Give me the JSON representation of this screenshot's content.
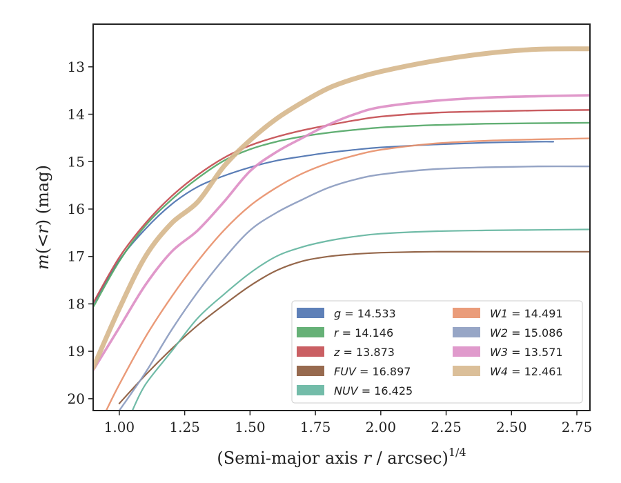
{
  "chart_data": {
    "type": "line",
    "xlabel": "(Semi-major axis r / arcsec)^1/4",
    "xlabel_parts": {
      "pre": "(Semi-major axis ",
      "var": "r",
      "post": " / arcsec)",
      "sup": "1/4"
    },
    "ylabel": "m(<r) (mag)",
    "ylabel_parts": {
      "pre": "m(",
      "var": "<r",
      "post": ") (mag)"
    },
    "xlim": [
      0.9,
      2.8
    ],
    "ylim": [
      20.25,
      12.1
    ],
    "y_inverted": true,
    "x_ticks": [
      "1.00",
      "1.25",
      "1.50",
      "1.75",
      "2.00",
      "2.25",
      "2.50",
      "2.75"
    ],
    "y_ticks": [
      "13",
      "14",
      "15",
      "16",
      "17",
      "18",
      "19",
      "20"
    ],
    "grid": false,
    "legend_position": "lower-right",
    "legend_columns": 2,
    "series": [
      {
        "name": "g = 14.533",
        "label_var": "g",
        "label_val": "14.533",
        "color": "#4c72b0",
        "width": 2.2,
        "x": [
          0.9,
          1.0,
          1.1,
          1.2,
          1.3,
          1.4,
          1.5,
          1.6,
          1.7,
          1.8,
          1.9,
          2.0,
          2.2,
          2.4,
          2.6,
          2.66
        ],
        "y": [
          18.0,
          17.08,
          16.42,
          15.9,
          15.53,
          15.3,
          15.12,
          14.98,
          14.89,
          14.81,
          14.75,
          14.7,
          14.64,
          14.6,
          14.58,
          14.58
        ]
      },
      {
        "name": "r = 14.146",
        "label_var": "r",
        "label_val": "14.146",
        "color": "#55a868",
        "width": 2.4,
        "x": [
          0.9,
          1.0,
          1.1,
          1.2,
          1.3,
          1.4,
          1.5,
          1.6,
          1.7,
          1.8,
          1.9,
          2.0,
          2.2,
          2.4,
          2.6,
          2.8
        ],
        "y": [
          18.07,
          17.1,
          16.35,
          15.8,
          15.35,
          14.98,
          14.74,
          14.58,
          14.47,
          14.39,
          14.33,
          14.28,
          14.23,
          14.2,
          14.19,
          14.18
        ]
      },
      {
        "name": "z = 13.873",
        "label_var": "z",
        "label_val": "13.873",
        "color": "#c44e52",
        "width": 2.4,
        "x": [
          0.9,
          1.0,
          1.1,
          1.2,
          1.3,
          1.4,
          1.5,
          1.6,
          1.7,
          1.8,
          1.9,
          2.0,
          2.2,
          2.4,
          2.6,
          2.8
        ],
        "y": [
          17.98,
          17.02,
          16.3,
          15.73,
          15.28,
          14.92,
          14.66,
          14.48,
          14.34,
          14.23,
          14.13,
          14.05,
          13.97,
          13.94,
          13.92,
          13.91
        ]
      },
      {
        "name": "FUV = 16.897",
        "label_var": "FUV",
        "label_val": "16.897",
        "color": "#8c5a3c",
        "width": 2.2,
        "x": [
          1.0,
          1.1,
          1.2,
          1.3,
          1.4,
          1.5,
          1.6,
          1.7,
          1.8,
          1.9,
          2.0,
          2.2,
          2.4,
          2.6,
          2.8
        ],
        "y": [
          20.1,
          19.5,
          18.95,
          18.45,
          18.02,
          17.62,
          17.3,
          17.1,
          17.0,
          16.95,
          16.92,
          16.9,
          16.9,
          16.9,
          16.9
        ]
      },
      {
        "name": "NUV = 16.425",
        "label_var": "NUV",
        "label_val": "16.425",
        "color": "#64b5a0",
        "width": 2.2,
        "x": [
          1.05,
          1.1,
          1.2,
          1.3,
          1.4,
          1.5,
          1.6,
          1.7,
          1.8,
          1.9,
          2.0,
          2.2,
          2.4,
          2.6,
          2.8
        ],
        "y": [
          20.25,
          19.7,
          19.0,
          18.3,
          17.8,
          17.35,
          17.0,
          16.8,
          16.67,
          16.58,
          16.52,
          16.47,
          16.45,
          16.44,
          16.43
        ]
      },
      {
        "name": "W1 = 14.491",
        "label_var": "W1",
        "label_val": "14.491",
        "color": "#e8916c",
        "width": 2.4,
        "x": [
          0.95,
          1.0,
          1.1,
          1.2,
          1.3,
          1.4,
          1.5,
          1.6,
          1.7,
          1.8,
          1.9,
          2.0,
          2.2,
          2.4,
          2.6,
          2.8
        ],
        "y": [
          20.25,
          19.7,
          18.7,
          17.85,
          17.1,
          16.45,
          15.93,
          15.55,
          15.25,
          15.03,
          14.87,
          14.75,
          14.62,
          14.56,
          14.53,
          14.51
        ]
      },
      {
        "name": "W2 = 15.086",
        "label_var": "W2",
        "label_val": "15.086",
        "color": "#8c9cc0",
        "width": 2.4,
        "x": [
          1.0,
          1.1,
          1.2,
          1.3,
          1.4,
          1.5,
          1.6,
          1.7,
          1.8,
          1.9,
          2.0,
          2.2,
          2.4,
          2.6,
          2.8
        ],
        "y": [
          20.25,
          19.45,
          18.55,
          17.75,
          17.05,
          16.45,
          16.08,
          15.8,
          15.55,
          15.38,
          15.27,
          15.16,
          15.12,
          15.1,
          15.1
        ]
      },
      {
        "name": "W3 = 13.571",
        "label_var": "W3",
        "label_val": "13.571",
        "color": "#dd8fc6",
        "width": 3.6,
        "x": [
          0.9,
          1.0,
          1.1,
          1.2,
          1.3,
          1.4,
          1.5,
          1.6,
          1.7,
          1.8,
          1.9,
          2.0,
          2.2,
          2.4,
          2.6,
          2.8
        ],
        "y": [
          19.4,
          18.5,
          17.6,
          16.9,
          16.45,
          15.85,
          15.2,
          14.8,
          14.5,
          14.22,
          14.0,
          13.85,
          13.72,
          13.65,
          13.62,
          13.6
        ]
      },
      {
        "name": "W4 = 12.461",
        "label_var": "W4",
        "label_val": "12.461",
        "color": "#d7b88e",
        "width": 7,
        "x": [
          0.9,
          1.0,
          1.1,
          1.2,
          1.3,
          1.4,
          1.5,
          1.6,
          1.7,
          1.8,
          1.9,
          2.0,
          2.2,
          2.4,
          2.6,
          2.8
        ],
        "y": [
          19.35,
          18.1,
          17.0,
          16.3,
          15.85,
          15.1,
          14.55,
          14.1,
          13.75,
          13.45,
          13.25,
          13.1,
          12.88,
          12.72,
          12.63,
          12.62
        ]
      }
    ]
  }
}
